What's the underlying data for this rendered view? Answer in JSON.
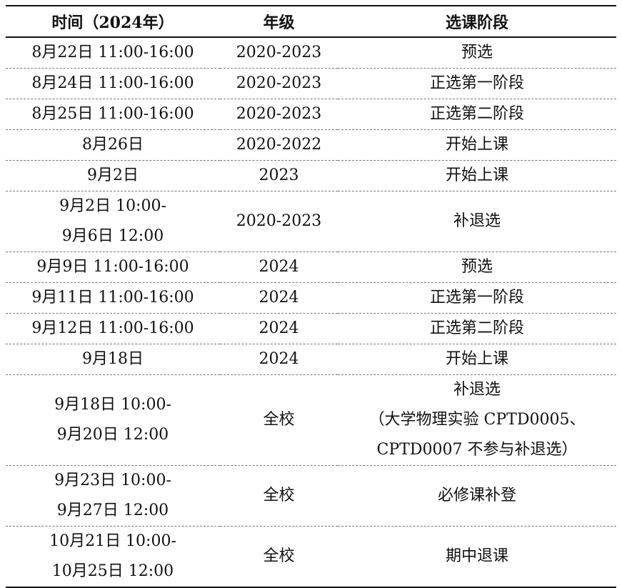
{
  "headers": [
    "时间（2024年）",
    "年级",
    "选课阶段"
  ],
  "rows": [
    {
      "time": [
        "8月22日 11:00-16:00"
      ],
      "grade": "2020-2023",
      "stage": [
        "预选"
      ]
    },
    {
      "time": [
        "8月24日 11:00-16:00"
      ],
      "grade": "2020-2023",
      "stage": [
        "正选第一阶段"
      ]
    },
    {
      "time": [
        "8月25日 11:00-16:00"
      ],
      "grade": "2020-2023",
      "stage": [
        "正选第二阶段"
      ]
    },
    {
      "time": [
        "8月26日"
      ],
      "grade": "2020-2022",
      "stage": [
        "开始上课"
      ]
    },
    {
      "time": [
        "9月2日"
      ],
      "grade": "2023",
      "stage": [
        "开始上课"
      ]
    },
    {
      "time": [
        "9月2日 10:00-",
        "9月6日 12:00"
      ],
      "grade": "2020-2023",
      "stage": [
        "补退选"
      ]
    },
    {
      "time": [
        "9月9日 11:00-16:00"
      ],
      "grade": "2024",
      "stage": [
        "预选"
      ]
    },
    {
      "time": [
        "9月11日 11:00-16:00"
      ],
      "grade": "2024",
      "stage": [
        "正选第一阶段"
      ]
    },
    {
      "time": [
        "9月12日 11:00-16:00"
      ],
      "grade": "2024",
      "stage": [
        "正选第二阶段"
      ]
    },
    {
      "time": [
        "9月18日"
      ],
      "grade": "2024",
      "stage": [
        "开始上课"
      ]
    },
    {
      "time": [
        "9月18日 10:00-",
        "9月20日 12:00"
      ],
      "grade": "全校",
      "stage": [
        "补退选",
        "（大学物理实验 CPTD0005、",
        "CPTD0007 不参与补退选）"
      ]
    },
    {
      "time": [
        "9月23日 10:00-",
        "9月27日 12:00"
      ],
      "grade": "全校",
      "stage": [
        "必修课补登"
      ]
    },
    {
      "time": [
        "10月21日 10:00-",
        "10月25日 12:00"
      ],
      "grade": "全校",
      "stage": [
        "期中退课"
      ]
    }
  ]
}
